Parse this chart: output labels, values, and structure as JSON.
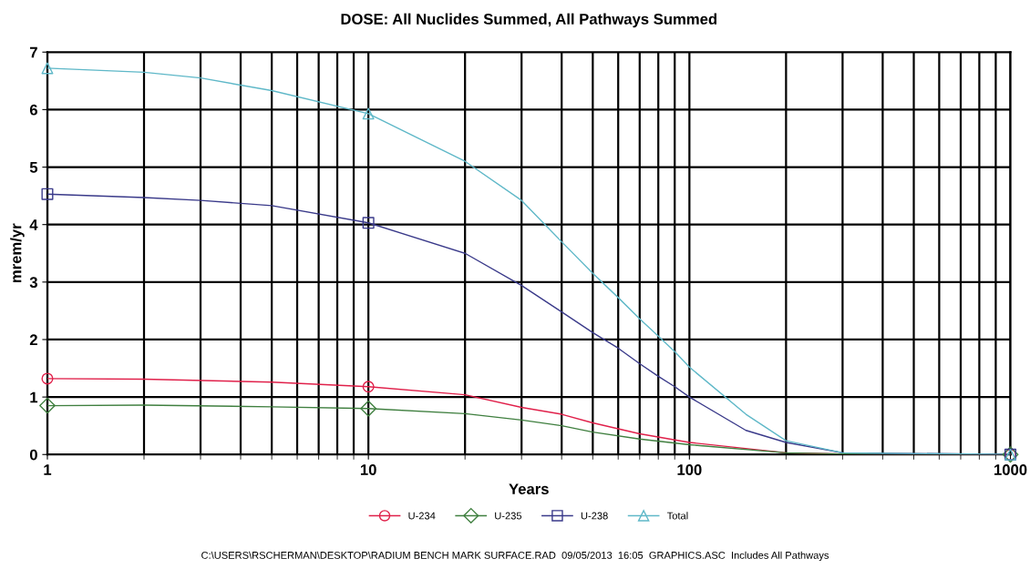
{
  "chart_data": {
    "type": "line",
    "title": "DOSE: All Nuclides Summed, All Pathways Summed",
    "xlabel": "Years",
    "ylabel": "mrem/yr",
    "log": "x",
    "xlim": [
      1,
      1000
    ],
    "xticks": [
      1,
      10,
      100,
      1000
    ],
    "ylim": [
      0,
      7
    ],
    "yticks": [
      0,
      1,
      2,
      3,
      4,
      5,
      6,
      7
    ],
    "grid": true,
    "legend": "bottom",
    "series": [
      {
        "name": "U-234",
        "color": "#e0204a",
        "x": [
          1,
          2,
          5,
          10,
          20,
          30,
          40,
          50,
          70,
          100,
          200,
          300,
          1000
        ],
        "values": [
          1.32,
          1.31,
          1.26,
          1.18,
          1.04,
          0.82,
          0.7,
          0.55,
          0.36,
          0.21,
          0.03,
          0.01,
          0.0
        ]
      },
      {
        "name": "U-235",
        "color": "#3f7f3f",
        "x": [
          1,
          2,
          5,
          10,
          20,
          30,
          40,
          50,
          70,
          100,
          200,
          300,
          1000
        ],
        "values": [
          0.85,
          0.86,
          0.83,
          0.8,
          0.71,
          0.6,
          0.5,
          0.39,
          0.27,
          0.17,
          0.03,
          0.01,
          0.0
        ]
      },
      {
        "name": "U-238",
        "color": "#3a3a8a",
        "x": [
          1,
          2,
          3,
          5,
          10,
          20,
          30,
          40,
          50,
          60,
          70,
          80,
          90,
          100,
          150,
          200,
          300,
          1000
        ],
        "values": [
          4.53,
          4.47,
          4.42,
          4.33,
          4.03,
          3.5,
          2.94,
          2.48,
          2.12,
          1.85,
          1.58,
          1.36,
          1.18,
          1.0,
          0.42,
          0.21,
          0.03,
          0.0
        ]
      },
      {
        "name": "Total",
        "color": "#5fb8c8",
        "x": [
          1,
          2,
          3,
          5,
          10,
          20,
          30,
          40,
          50,
          60,
          70,
          80,
          90,
          100,
          150,
          200,
          300,
          1000
        ],
        "values": [
          6.72,
          6.65,
          6.55,
          6.33,
          5.93,
          5.1,
          4.42,
          3.7,
          3.15,
          2.73,
          2.36,
          2.06,
          1.79,
          1.52,
          0.7,
          0.24,
          0.03,
          0.0
        ]
      },
      {
        "type": "scatter",
        "color": "#e0204a",
        "marker": "circle",
        "x": [
          1,
          10,
          1000
        ],
        "values": [
          1.32,
          1.18,
          0.0
        ]
      },
      {
        "type": "scatter",
        "color": "#3f7f3f",
        "marker": "diamond",
        "x": [
          1,
          10,
          1000
        ],
        "values": [
          0.85,
          0.8,
          0.0
        ]
      },
      {
        "type": "scatter",
        "color": "#3a3a8a",
        "marker": "square",
        "x": [
          1,
          10,
          1000
        ],
        "values": [
          4.53,
          4.03,
          0.0
        ]
      },
      {
        "type": "scatter",
        "color": "#5fb8c8",
        "marker": "triangle",
        "x": [
          1,
          10,
          1000
        ],
        "values": [
          6.72,
          5.93,
          0.0
        ]
      }
    ],
    "annotations": [
      "C:\\USERS\\RSCHERMAN\\DESKTOP\\RADIUM BENCH MARK SURFACE.RAD  09/05/2013  16:05  GRAPHICS.ASC  Includes All Pathways"
    ]
  }
}
